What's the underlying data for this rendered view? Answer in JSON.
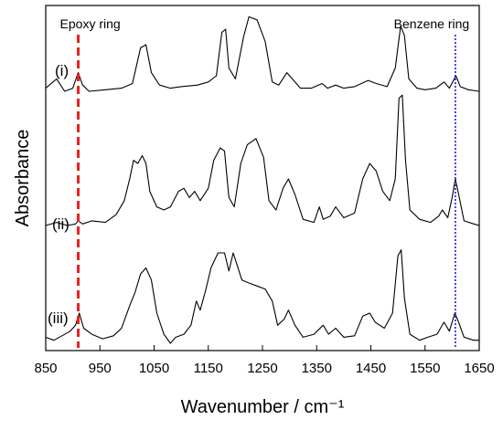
{
  "chart_data": {
    "type": "line",
    "title": "",
    "xlabel": "Wavenumber / cm⁻¹",
    "ylabel": "Absorbance",
    "xlim": [
      850,
      1650
    ],
    "xticks": [
      850,
      950,
      1050,
      1150,
      1250,
      1350,
      1450,
      1550,
      1650
    ],
    "yticks_shown": false,
    "grid": false,
    "legend": "none",
    "annotations": [
      {
        "text": "Epoxy ring",
        "x": 910,
        "line_color": "#e8211d",
        "line_style": "dashed"
      },
      {
        "text": "Benzene ring",
        "x": 1606,
        "line_color": "#1b1bd6",
        "line_style": "dotted"
      }
    ],
    "series": [
      {
        "label": "(i)",
        "points": [
          [
            850,
            0.02
          ],
          [
            870,
            0.08
          ],
          [
            885,
            0.0
          ],
          [
            900,
            0.02
          ],
          [
            910,
            0.12
          ],
          [
            918,
            0.04
          ],
          [
            930,
            0.0
          ],
          [
            960,
            0.01
          ],
          [
            990,
            0.02
          ],
          [
            1010,
            0.05
          ],
          [
            1025,
            0.28
          ],
          [
            1035,
            0.3
          ],
          [
            1045,
            0.12
          ],
          [
            1060,
            0.04
          ],
          [
            1080,
            0.02
          ],
          [
            1100,
            0.03
          ],
          [
            1130,
            0.04
          ],
          [
            1150,
            0.06
          ],
          [
            1165,
            0.1
          ],
          [
            1175,
            0.38
          ],
          [
            1182,
            0.4
          ],
          [
            1188,
            0.15
          ],
          [
            1200,
            0.08
          ],
          [
            1215,
            0.35
          ],
          [
            1225,
            0.48
          ],
          [
            1240,
            0.46
          ],
          [
            1255,
            0.32
          ],
          [
            1268,
            0.06
          ],
          [
            1280,
            0.04
          ],
          [
            1295,
            0.12
          ],
          [
            1305,
            0.08
          ],
          [
            1320,
            0.02
          ],
          [
            1340,
            0.02
          ],
          [
            1360,
            0.05
          ],
          [
            1370,
            0.02
          ],
          [
            1385,
            0.04
          ],
          [
            1400,
            0.02
          ],
          [
            1420,
            0.03
          ],
          [
            1445,
            0.07
          ],
          [
            1460,
            0.05
          ],
          [
            1480,
            0.03
          ],
          [
            1495,
            0.15
          ],
          [
            1505,
            0.42
          ],
          [
            1512,
            0.36
          ],
          [
            1520,
            0.08
          ],
          [
            1535,
            0.02
          ],
          [
            1550,
            0.01
          ],
          [
            1570,
            0.02
          ],
          [
            1585,
            0.06
          ],
          [
            1595,
            0.02
          ],
          [
            1607,
            0.1
          ],
          [
            1615,
            0.03
          ],
          [
            1630,
            0.01
          ],
          [
            1650,
            0.0
          ]
        ]
      },
      {
        "label": "(ii)",
        "points": [
          [
            850,
            0.0
          ],
          [
            870,
            0.02
          ],
          [
            890,
            0.0
          ],
          [
            905,
            0.01
          ],
          [
            910,
            0.03
          ],
          [
            918,
            0.01
          ],
          [
            935,
            0.03
          ],
          [
            960,
            0.02
          ],
          [
            980,
            0.07
          ],
          [
            995,
            0.16
          ],
          [
            1005,
            0.3
          ],
          [
            1012,
            0.42
          ],
          [
            1020,
            0.4
          ],
          [
            1028,
            0.45
          ],
          [
            1035,
            0.4
          ],
          [
            1042,
            0.22
          ],
          [
            1055,
            0.12
          ],
          [
            1068,
            0.1
          ],
          [
            1080,
            0.12
          ],
          [
            1095,
            0.22
          ],
          [
            1105,
            0.24
          ],
          [
            1115,
            0.18
          ],
          [
            1125,
            0.22
          ],
          [
            1135,
            0.16
          ],
          [
            1150,
            0.24
          ],
          [
            1160,
            0.42
          ],
          [
            1172,
            0.5
          ],
          [
            1180,
            0.48
          ],
          [
            1188,
            0.18
          ],
          [
            1198,
            0.12
          ],
          [
            1210,
            0.4
          ],
          [
            1222,
            0.52
          ],
          [
            1238,
            0.56
          ],
          [
            1252,
            0.44
          ],
          [
            1262,
            0.16
          ],
          [
            1275,
            0.1
          ],
          [
            1288,
            0.24
          ],
          [
            1298,
            0.3
          ],
          [
            1310,
            0.2
          ],
          [
            1325,
            0.04
          ],
          [
            1345,
            0.02
          ],
          [
            1355,
            0.12
          ],
          [
            1362,
            0.04
          ],
          [
            1375,
            0.06
          ],
          [
            1385,
            0.12
          ],
          [
            1400,
            0.05
          ],
          [
            1420,
            0.08
          ],
          [
            1435,
            0.3
          ],
          [
            1448,
            0.4
          ],
          [
            1460,
            0.35
          ],
          [
            1472,
            0.22
          ],
          [
            1485,
            0.16
          ],
          [
            1495,
            0.3
          ],
          [
            1502,
            0.82
          ],
          [
            1508,
            0.84
          ],
          [
            1514,
            0.42
          ],
          [
            1522,
            0.1
          ],
          [
            1540,
            0.04
          ],
          [
            1560,
            0.02
          ],
          [
            1575,
            0.06
          ],
          [
            1582,
            0.1
          ],
          [
            1592,
            0.05
          ],
          [
            1600,
            0.18
          ],
          [
            1606,
            0.3
          ],
          [
            1612,
            0.2
          ],
          [
            1622,
            0.03
          ],
          [
            1640,
            0.01
          ],
          [
            1650,
            0.0
          ]
        ]
      },
      {
        "label": "(iii)",
        "points": [
          [
            850,
            0.04
          ],
          [
            865,
            0.02
          ],
          [
            880,
            0.05
          ],
          [
            895,
            0.08
          ],
          [
            905,
            0.12
          ],
          [
            912,
            0.2
          ],
          [
            920,
            0.1
          ],
          [
            935,
            0.06
          ],
          [
            955,
            0.03
          ],
          [
            975,
            0.05
          ],
          [
            990,
            0.1
          ],
          [
            1005,
            0.25
          ],
          [
            1015,
            0.34
          ],
          [
            1025,
            0.46
          ],
          [
            1035,
            0.5
          ],
          [
            1045,
            0.42
          ],
          [
            1055,
            0.2
          ],
          [
            1068,
            0.06
          ],
          [
            1080,
            0.0
          ],
          [
            1090,
            0.04
          ],
          [
            1105,
            0.06
          ],
          [
            1118,
            0.12
          ],
          [
            1128,
            0.28
          ],
          [
            1135,
            0.22
          ],
          [
            1145,
            0.35
          ],
          [
            1155,
            0.5
          ],
          [
            1168,
            0.6
          ],
          [
            1180,
            0.6
          ],
          [
            1188,
            0.48
          ],
          [
            1196,
            0.6
          ],
          [
            1203,
            0.52
          ],
          [
            1212,
            0.42
          ],
          [
            1225,
            0.4
          ],
          [
            1240,
            0.38
          ],
          [
            1255,
            0.36
          ],
          [
            1268,
            0.28
          ],
          [
            1278,
            0.12
          ],
          [
            1290,
            0.16
          ],
          [
            1298,
            0.22
          ],
          [
            1310,
            0.12
          ],
          [
            1325,
            0.04
          ],
          [
            1345,
            0.06
          ],
          [
            1362,
            0.12
          ],
          [
            1372,
            0.06
          ],
          [
            1385,
            0.1
          ],
          [
            1400,
            0.04
          ],
          [
            1420,
            0.05
          ],
          [
            1435,
            0.18
          ],
          [
            1448,
            0.2
          ],
          [
            1458,
            0.14
          ],
          [
            1475,
            0.1
          ],
          [
            1490,
            0.2
          ],
          [
            1500,
            0.58
          ],
          [
            1506,
            0.62
          ],
          [
            1512,
            0.3
          ],
          [
            1522,
            0.06
          ],
          [
            1540,
            0.02
          ],
          [
            1555,
            0.04
          ],
          [
            1572,
            0.06
          ],
          [
            1585,
            0.14
          ],
          [
            1595,
            0.08
          ],
          [
            1605,
            0.2
          ],
          [
            1612,
            0.14
          ],
          [
            1622,
            0.04
          ],
          [
            1640,
            0.02
          ],
          [
            1650,
            0.02
          ]
        ]
      }
    ]
  }
}
